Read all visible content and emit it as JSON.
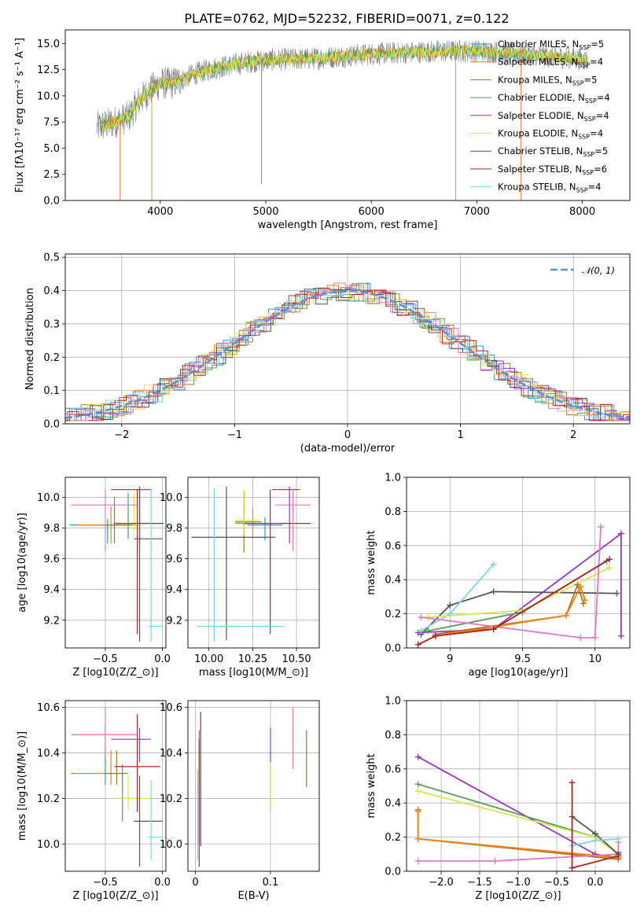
{
  "title": "PLATE=0762, MJD=52232, FIBERID=0071, z=0.122",
  "colors": {
    "Chabrier MILES": "#1f9ad6",
    "Salpeter MILES": "#ff7f0e",
    "Kroupa MILES": "#a07820",
    "Chabrier ELODIE": "#5a9a5a",
    "Salpeter ELODIE": "#9932cc",
    "Kroupa ELODIE": "#d4e84c",
    "Chabrier STELIB": "#555555",
    "Salpeter STELIB": "#b22222",
    "Kroupa STELIB": "#7ad6e0",
    "spectrum": "#808080",
    "pink": "#e377c2",
    "normal": "#5b8fd6",
    "grid": "#b0b0b0"
  },
  "chart_data": [
    {
      "id": "spectrum",
      "type": "line",
      "title": "PLATE=0762, MJD=52232, FIBERID=0071, z=0.122",
      "xlabel": "wavelength [Angstrom, rest frame]",
      "ylabel": "Flux [fλ10⁻¹⁷ erg cm⁻² s⁻¹ A⁻¹]",
      "xlim": [
        3100,
        8450
      ],
      "ylim": [
        0,
        16.3
      ],
      "xticks": [
        4000,
        5000,
        6000,
        7000,
        8000
      ],
      "yticks": [
        0.0,
        2.5,
        5.0,
        7.5,
        10.0,
        12.5,
        15.0
      ],
      "grid": false,
      "legend_position": "top-right",
      "legend": [
        "Chabrier MILES, N$_{SSP}$=5",
        "Salpeter MILES, N$_{SSP}$=4",
        "Kroupa MILES, N$_{SSP}$=5",
        "Chabrier ELODIE, N$_{SSP}$=4",
        "Salpeter ELODIE, N$_{SSP}$=4",
        "Kroupa ELODIE, N$_{SSP}$=4",
        "Chabrier STELIB, N$_{SSP}$=5",
        "Salpeter STELIB, N$_{SSP}$=6",
        "Kroupa STELIB, N$_{SSP}$=4"
      ],
      "legend_series_keys": [
        "Chabrier MILES",
        "Salpeter MILES",
        "Kroupa MILES",
        "Chabrier ELODIE",
        "Salpeter ELODIE",
        "Kroupa ELODIE",
        "Chabrier STELIB",
        "Salpeter STELIB",
        "Kroupa STELIB"
      ],
      "continuum": {
        "x": [
          3400,
          3500,
          3600,
          3700,
          3800,
          3900,
          4000,
          4100,
          4200,
          4300,
          4500,
          4800,
          5000,
          5500,
          6000,
          6500,
          7000,
          7500,
          7900,
          8050
        ],
        "y": [
          7.0,
          7.3,
          7.6,
          8.0,
          9.5,
          10.5,
          11.2,
          11.2,
          11.5,
          12.0,
          12.6,
          13.2,
          13.4,
          13.6,
          14.0,
          14.2,
          14.3,
          13.9,
          13.6,
          13.4
        ]
      },
      "dips": [
        {
          "x": 3620,
          "y": 0
        },
        {
          "x": 3920,
          "y": 0
        },
        {
          "x": 4960,
          "y": 1.6
        },
        {
          "x": 6800,
          "y": 0
        },
        {
          "x": 7420,
          "y": 0
        }
      ]
    },
    {
      "id": "residuals",
      "type": "line",
      "xlabel": "(data-model)/error",
      "ylabel": "Normed distribution",
      "xlim": [
        -2.5,
        2.5
      ],
      "ylim": [
        0,
        0.51
      ],
      "xticks": [
        -2,
        -1,
        0,
        1,
        2
      ],
      "yticks": [
        0.0,
        0.1,
        0.2,
        0.3,
        0.4,
        0.5
      ],
      "grid": true,
      "legend_position": "top-right",
      "legend": [
        "$\\mathcal{N}(0,1)$"
      ],
      "normal_mu": 0,
      "normal_sigma": 1
    },
    {
      "id": "age-vs-Z",
      "type": "scatter",
      "xlabel": "Z [log$_{10}$(Z/Z$_\\odot$)]",
      "ylabel": "age  [log$_{10}$(age/yr)]",
      "xlim": [
        -0.85,
        0.03
      ],
      "ylim": [
        9.02,
        10.13
      ],
      "xticks": [
        -0.5,
        0.0
      ],
      "xtick_labels": [
        "−0.5",
        "0.0"
      ],
      "yticks": [
        9.2,
        9.4,
        9.6,
        9.8,
        10.0
      ],
      "grid": true,
      "points": [
        {
          "series": "Chabrier MILES",
          "x": -0.48,
          "y": 9.82,
          "xerr": [
            0.33,
            0.2
          ],
          "yerr": [
            0.12,
            0.04
          ]
        },
        {
          "series": "Salpeter MILES",
          "x": -0.45,
          "y": 9.82,
          "xerr": [
            0.3,
            0.22
          ],
          "yerr": [
            0.12,
            0.12
          ]
        },
        {
          "series": "Kroupa MILES",
          "x": -0.42,
          "y": 9.82,
          "xerr": [
            0.1,
            0.15
          ],
          "yerr": [
            0.12,
            0.18
          ]
        },
        {
          "series": "Chabrier ELODIE",
          "x": -0.3,
          "y": 9.83,
          "xerr": [
            0.1,
            0.1
          ],
          "yerr": [
            0.1,
            0.2
          ]
        },
        {
          "series": "Salpeter ELODIE",
          "x": -0.2,
          "y": 10.05,
          "xerr": [
            0.25,
            0.1
          ],
          "yerr": [
            0.35,
            0.02
          ]
        },
        {
          "series": "Kroupa ELODIE",
          "x": -0.25,
          "y": 9.83,
          "xerr": [
            0.1,
            0.1
          ],
          "yerr": [
            0.05,
            0.2
          ]
        },
        {
          "series": "Chabrier STELIB",
          "x": -0.2,
          "y": 9.73,
          "xerr": [
            0.05,
            0.2
          ],
          "yerr": [
            0.67,
            0.33
          ]
        },
        {
          "series": "Salpeter STELIB",
          "x": -0.22,
          "y": 9.83,
          "xerr": [
            0.2,
            0.23
          ],
          "yerr": [
            0.72,
            0.22
          ]
        },
        {
          "series": "Kroupa STELIB",
          "x": -0.1,
          "y": 9.16,
          "xerr": [
            0.02,
            0.1
          ],
          "yerr": [
            0.1,
            0.9
          ]
        },
        {
          "series": "pink",
          "x": -0.5,
          "y": 9.95,
          "xerr": [
            0.3,
            0.28
          ],
          "yerr": [
            0.3,
            0.1
          ]
        }
      ]
    },
    {
      "id": "age-vs-mass",
      "type": "scatter",
      "xlabel": "mass [log$_{10}$(M/M$_\\odot$)]",
      "ylabel": "",
      "xlim": [
        9.88,
        10.63
      ],
      "ylim": [
        9.02,
        10.13
      ],
      "xticks": [
        10.0,
        10.25,
        10.5
      ],
      "xtick_labels": [
        "10.00",
        "10.25",
        "10.50"
      ],
      "yticks": [
        9.2,
        9.4,
        9.6,
        9.8,
        10.0
      ],
      "grid": true,
      "points": [
        {
          "series": "Chabrier MILES",
          "x": 10.32,
          "y": 9.82,
          "xerr": [
            0.1,
            0.1
          ],
          "yerr": [
            0.1,
            0.05
          ]
        },
        {
          "series": "Salpeter MILES",
          "x": 10.25,
          "y": 9.83,
          "xerr": [
            0.1,
            0.1
          ],
          "yerr": [
            0.1,
            0.1
          ]
        },
        {
          "series": "Kroupa MILES",
          "x": 10.2,
          "y": 9.84,
          "xerr": [
            0.05,
            0.1
          ],
          "yerr": [
            0.2,
            0.2
          ]
        },
        {
          "series": "Chabrier ELODIE",
          "x": 10.2,
          "y": 9.84,
          "xerr": [
            0.05,
            0.05
          ],
          "yerr": [
            0.1,
            0.2
          ]
        },
        {
          "series": "Salpeter ELODIE",
          "x": 10.46,
          "y": 10.05,
          "xerr": [
            0.1,
            0.06
          ],
          "yerr": [
            0.35,
            0.02
          ]
        },
        {
          "series": "Kroupa ELODIE",
          "x": 10.2,
          "y": 9.85,
          "xerr": [
            0.05,
            0.08
          ],
          "yerr": [
            0.1,
            0.2
          ]
        },
        {
          "series": "Chabrier STELIB",
          "x": 10.1,
          "y": 9.74,
          "xerr": [
            0.2,
            0.28
          ],
          "yerr": [
            0.67,
            0.33
          ]
        },
        {
          "series": "Salpeter STELIB",
          "x": 10.35,
          "y": 9.83,
          "xerr": [
            0.15,
            0.23
          ],
          "yerr": [
            0.72,
            0.22
          ]
        },
        {
          "series": "Kroupa STELIB",
          "x": 10.03,
          "y": 9.16,
          "xerr": [
            0.1,
            0.4
          ],
          "yerr": [
            0.1,
            0.9
          ]
        },
        {
          "series": "pink",
          "x": 10.48,
          "y": 9.95,
          "xerr": [
            0.1,
            0.1
          ],
          "yerr": [
            0.3,
            0.1
          ]
        }
      ]
    },
    {
      "id": "massweight-vs-age",
      "type": "line",
      "xlabel": "age  [log$_{10}$(age/yr)]",
      "ylabel": "mass weight",
      "xlim": [
        8.7,
        10.24
      ],
      "ylim": [
        0,
        1.0
      ],
      "xticks": [
        9.0,
        9.5,
        10.0
      ],
      "yticks": [
        0.0,
        0.2,
        0.4,
        0.6,
        0.8,
        1.0
      ],
      "grid": true,
      "series": [
        {
          "key": "Salpeter ELODIE",
          "x": [
            8.78,
            9.3,
            10.18,
            10.18
          ],
          "y": [
            0.09,
            0.11,
            0.67,
            0.07
          ]
        },
        {
          "key": "Chabrier STELIB",
          "x": [
            8.8,
            9.0,
            9.3,
            10.15
          ],
          "y": [
            0.08,
            0.25,
            0.33,
            0.32
          ]
        },
        {
          "key": "Kroupa STELIB",
          "x": [
            8.8,
            9.0,
            9.3
          ],
          "y": [
            0.1,
            0.2,
            0.49
          ]
        },
        {
          "key": "Kroupa ELODIE",
          "x": [
            8.85,
            9.5,
            10.1
          ],
          "y": [
            0.18,
            0.22,
            0.47
          ]
        },
        {
          "key": "Chabrier ELODIE",
          "x": [
            8.85,
            9.5,
            10.08
          ],
          "y": [
            0.1,
            0.21,
            0.51
          ]
        },
        {
          "key": "Kroupa MILES",
          "x": [
            8.9,
            9.8,
            9.88,
            9.92
          ],
          "y": [
            0.08,
            0.19,
            0.37,
            0.26
          ]
        },
        {
          "key": "Salpeter MILES",
          "x": [
            8.9,
            9.8,
            9.9,
            9.93
          ],
          "y": [
            0.07,
            0.19,
            0.36,
            0.28
          ]
        },
        {
          "key": "pink",
          "x": [
            8.8,
            9.9,
            10.0,
            10.04
          ],
          "y": [
            0.18,
            0.06,
            0.06,
            0.71
          ]
        },
        {
          "key": "Salpeter STELIB",
          "x": [
            8.78,
            8.9,
            9.3,
            10.1
          ],
          "y": [
            0.02,
            0.07,
            0.11,
            0.52
          ]
        }
      ]
    },
    {
      "id": "mass-vs-Z",
      "type": "scatter",
      "xlabel": "Z [log$_{10}$(Z/Z$_\\odot$)]",
      "ylabel": "mass [log$_{10}$(M/M$_\\odot$)]",
      "xlim": [
        -0.85,
        0.03
      ],
      "ylim": [
        9.88,
        10.63
      ],
      "xticks": [
        -0.5,
        0.0
      ],
      "xtick_labels": [
        "−0.5",
        "0.0"
      ],
      "yticks": [
        10.0,
        10.2,
        10.4,
        10.6
      ],
      "grid": true,
      "points": [
        {
          "series": "Chabrier MILES",
          "x": -0.5,
          "y": 10.31,
          "xerr": [
            0.3,
            0.1
          ],
          "yerr": [
            0.05,
            0.22
          ]
        },
        {
          "series": "Salpeter MILES",
          "x": -0.45,
          "y": 10.31,
          "xerr": [
            0.33,
            0.12
          ],
          "yerr": [
            0.05,
            0.1
          ]
        },
        {
          "series": "Kroupa MILES",
          "x": -0.4,
          "y": 10.31,
          "xerr": [
            0.1,
            0.1
          ],
          "yerr": [
            0.05,
            0.1
          ]
        },
        {
          "series": "Chabrier ELODIE",
          "x": -0.35,
          "y": 10.2,
          "xerr": [
            0.05,
            0.15
          ],
          "yerr": [
            0.1,
            0.15
          ]
        },
        {
          "series": "Salpeter ELODIE",
          "x": -0.2,
          "y": 10.46,
          "xerr": [
            0.25,
            0.1
          ],
          "yerr": [
            0.1,
            0.05
          ]
        },
        {
          "series": "Kroupa ELODIE",
          "x": -0.3,
          "y": 10.2,
          "xerr": [
            0.1,
            0.2
          ],
          "yerr": [
            0.05,
            0.1
          ]
        },
        {
          "series": "Chabrier STELIB",
          "x": -0.2,
          "y": 10.1,
          "xerr": [
            0.05,
            0.2
          ],
          "yerr": [
            0.2,
            0.2
          ]
        },
        {
          "series": "Salpeter STELIB",
          "x": -0.22,
          "y": 10.34,
          "xerr": [
            0.2,
            0.2
          ],
          "yerr": [
            0.2,
            0.23
          ]
        },
        {
          "series": "Kroupa STELIB",
          "x": -0.1,
          "y": 10.03,
          "xerr": [
            0.03,
            0.1
          ],
          "yerr": [
            0.1,
            0.25
          ]
        },
        {
          "series": "pink",
          "x": -0.5,
          "y": 10.48,
          "xerr": [
            0.3,
            0.28
          ],
          "yerr": [
            0.1,
            0.12
          ]
        }
      ]
    },
    {
      "id": "mass-vs-ebv",
      "type": "scatter",
      "xlabel": "E(B-V)",
      "ylabel": "",
      "xlim": [
        -0.01,
        0.165
      ],
      "ylim": [
        9.88,
        10.63
      ],
      "xticks": [
        0.0,
        0.1
      ],
      "yticks": [
        10.0,
        10.2,
        10.4,
        10.6
      ],
      "grid": true,
      "points": [
        {
          "series": "Chabrier MILES",
          "x": 0.005,
          "y": 10.3,
          "yerr": [
            0.3,
            0.2
          ]
        },
        {
          "series": "Salpeter MILES",
          "x": 0.005,
          "y": 10.3,
          "yerr": [
            0.05,
            0.1
          ]
        },
        {
          "series": "Kroupa MILES",
          "x": 0.148,
          "y": 10.4,
          "yerr": [
            0.15,
            0.1
          ]
        },
        {
          "series": "Chabrier ELODIE",
          "x": 0.1,
          "y": 10.2,
          "yerr": [
            0.05,
            0.15
          ]
        },
        {
          "series": "Salpeter ELODIE",
          "x": 0.1,
          "y": 10.46,
          "yerr": [
            0.1,
            0.05
          ]
        },
        {
          "series": "Kroupa ELODIE",
          "x": 0.1,
          "y": 10.2,
          "yerr": [
            0.05,
            0.15
          ]
        },
        {
          "series": "Chabrier STELIB",
          "x": 0.005,
          "y": 10.1,
          "yerr": [
            0.2,
            0.36
          ]
        },
        {
          "series": "Salpeter STELIB",
          "x": 0.007,
          "y": 10.34,
          "yerr": [
            0.35,
            0.24
          ]
        },
        {
          "series": "Kroupa STELIB",
          "x": 0.003,
          "y": 10.03,
          "yerr": [
            0.1,
            0.3
          ]
        },
        {
          "series": "pink",
          "x": 0.13,
          "y": 10.48,
          "yerr": [
            0.15,
            0.12
          ]
        }
      ]
    },
    {
      "id": "massweight-vs-Z",
      "type": "line",
      "xlabel": "Z [log$_{10}$(Z/Z$_\\odot$)]",
      "ylabel": "mass weight",
      "xlim": [
        -2.45,
        0.45
      ],
      "ylim": [
        0,
        1.0
      ],
      "xticks": [
        -2.0,
        -1.5,
        -1.0,
        -0.5,
        0.0
      ],
      "xtick_labels": [
        "−2.0",
        "−1.5",
        "−1.0",
        "−0.5",
        "0.0"
      ],
      "yticks": [
        0.0,
        0.2,
        0.4,
        0.6,
        0.8,
        1.0
      ],
      "grid": true,
      "series": [
        {
          "key": "Salpeter ELODIE",
          "x": [
            -2.3,
            0.0,
            0.3,
            0.3
          ],
          "y": [
            0.67,
            0.1,
            0.08,
            0.11
          ]
        },
        {
          "key": "Chabrier ELODIE",
          "x": [
            -2.3,
            0.0,
            0.3
          ],
          "y": [
            0.51,
            0.2,
            0.1
          ]
        },
        {
          "key": "Kroupa ELODIE",
          "x": [
            -2.3,
            0.0,
            0.3
          ],
          "y": [
            0.47,
            0.2,
            0.1
          ]
        },
        {
          "key": "Kroupa MILES",
          "x": [
            -2.3,
            -2.3,
            0.3
          ],
          "y": [
            0.36,
            0.19,
            0.07
          ]
        },
        {
          "key": "Salpeter MILES",
          "x": [
            -2.3,
            -2.3,
            0.3
          ],
          "y": [
            0.35,
            0.19,
            0.08
          ]
        },
        {
          "key": "pink",
          "x": [
            -2.3,
            -1.3,
            0.3,
            0.3
          ],
          "y": [
            0.06,
            0.06,
            0.1,
            0.17
          ]
        },
        {
          "key": "Chabrier STELIB",
          "x": [
            -0.3,
            0.0,
            0.3
          ],
          "y": [
            0.32,
            0.22,
            0.1
          ]
        },
        {
          "key": "Kroupa STELIB",
          "x": [
            -0.3,
            0.0,
            0.3
          ],
          "y": [
            0.15,
            0.18,
            0.19
          ]
        },
        {
          "key": "Salpeter STELIB",
          "x": [
            -0.3,
            -0.3,
            0.3
          ],
          "y": [
            0.52,
            0.02,
            0.09
          ]
        }
      ]
    }
  ]
}
